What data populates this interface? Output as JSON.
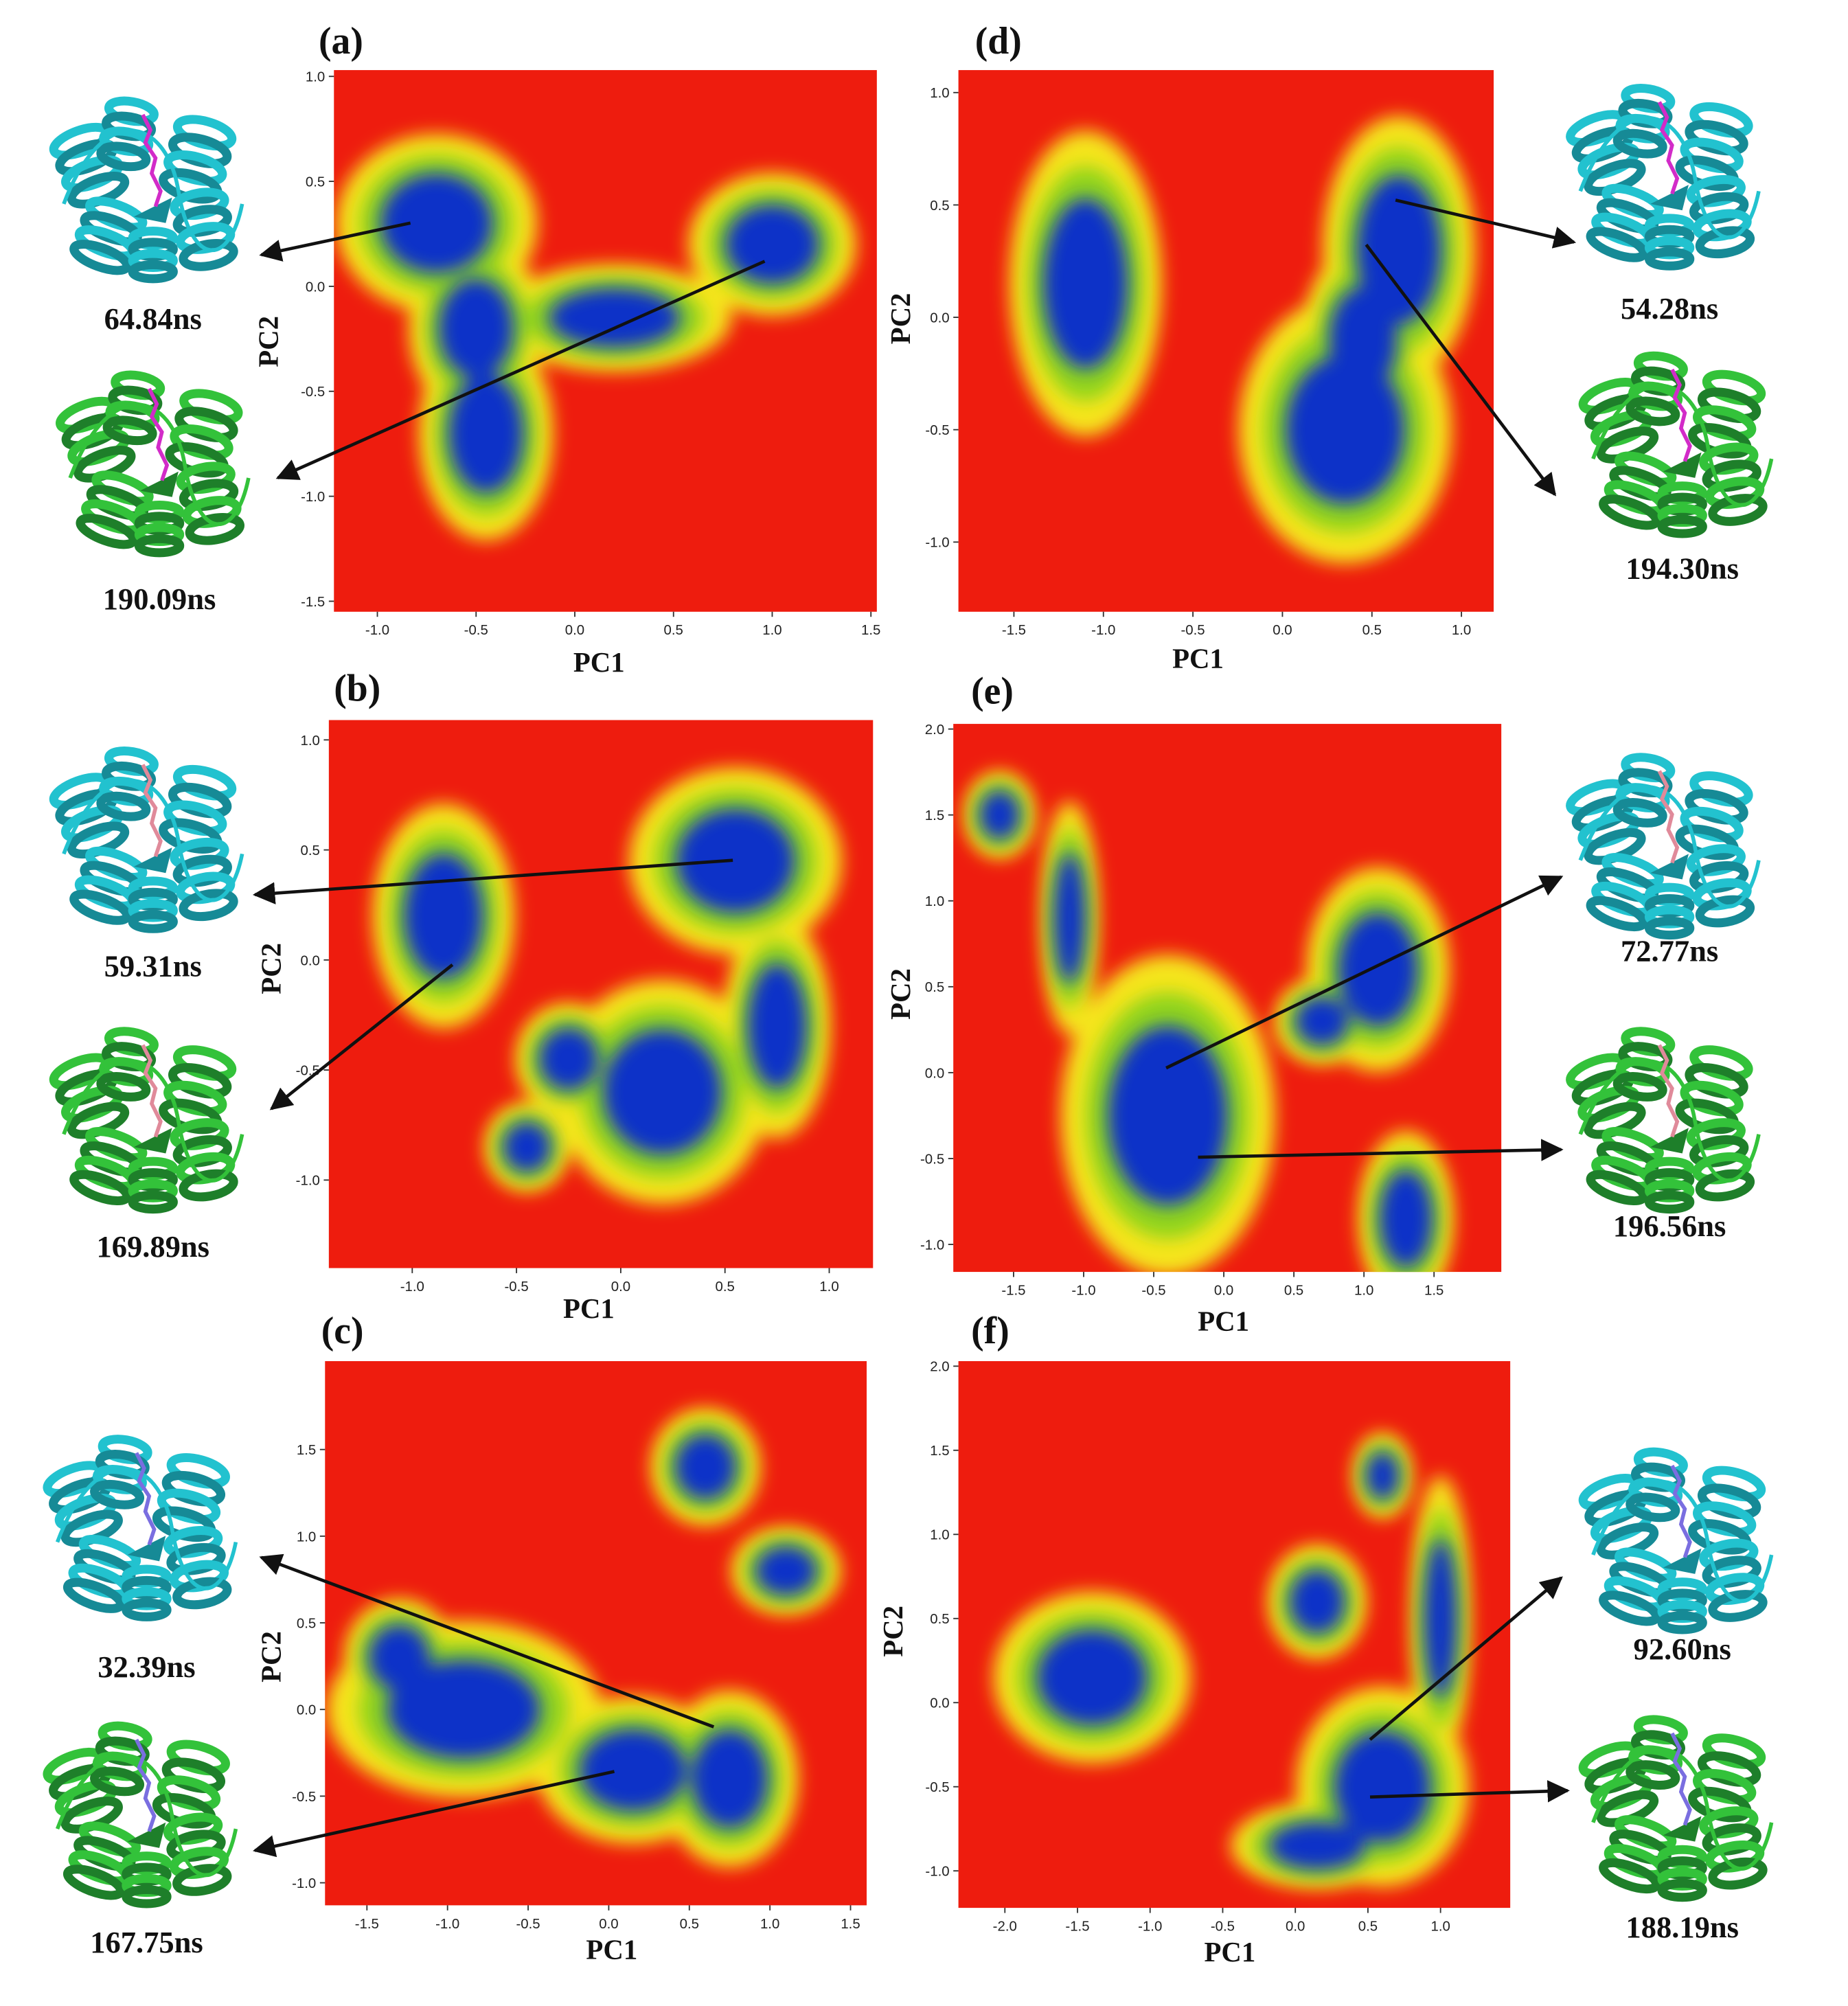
{
  "chart_data": [
    {
      "type": "density",
      "panel": "(a)",
      "xlabel": "PC1",
      "ylabel": "PC2",
      "xlim": [
        -1.22,
        1.53
      ],
      "ylim": [
        -1.55,
        1.03
      ],
      "xticks": [
        {
          "value": -1,
          "label": "-1.0"
        },
        -0.5,
        {
          "value": 0,
          "label": "0.0"
        },
        0.5,
        {
          "value": 1,
          "label": "1.0"
        },
        1.5
      ],
      "yticks": [
        -1.5,
        {
          "value": -1,
          "label": "-1.0"
        },
        -0.5,
        {
          "value": 0,
          "label": "0.0"
        },
        0.5,
        {
          "value": 1,
          "label": "1.0"
        }
      ],
      "basins": [
        {
          "x": -0.7,
          "y": 0.3,
          "rx": 0.3,
          "ry": 0.25
        },
        {
          "x": -0.5,
          "y": -0.2,
          "rx": 0.2,
          "ry": 0.25
        },
        {
          "x": -0.45,
          "y": -0.7,
          "rx": 0.2,
          "ry": 0.3
        },
        {
          "x": 0.2,
          "y": -0.15,
          "rx": 0.35,
          "ry": 0.15
        },
        {
          "x": 1.0,
          "y": 0.2,
          "rx": 0.25,
          "ry": 0.2
        }
      ],
      "snapshots": [
        "64.84ns",
        "190.09ns"
      ]
    },
    {
      "type": "density",
      "panel": "(b)",
      "xlabel": "PC1",
      "ylabel": "PC2",
      "xlim": [
        -1.4,
        1.21
      ],
      "ylim": [
        -1.4,
        1.09
      ],
      "xticks": [
        {
          "value": -1,
          "label": "-1.0"
        },
        -0.5,
        {
          "value": 0,
          "label": "0.0"
        },
        0.5,
        {
          "value": 1,
          "label": "1.0"
        }
      ],
      "yticks": [
        {
          "value": -1,
          "label": "-1.0"
        },
        -0.5,
        {
          "value": 0,
          "label": "0.0"
        },
        0.5,
        {
          "value": 1,
          "label": "1.0"
        }
      ],
      "basins": [
        {
          "x": -0.85,
          "y": 0.2,
          "rx": 0.2,
          "ry": 0.3
        },
        {
          "x": 0.55,
          "y": 0.45,
          "rx": 0.3,
          "ry": 0.25
        },
        {
          "x": -0.25,
          "y": -0.45,
          "rx": 0.15,
          "ry": 0.15
        },
        {
          "x": -0.45,
          "y": -0.85,
          "rx": 0.12,
          "ry": 0.12
        },
        {
          "x": 0.75,
          "y": -0.3,
          "rx": 0.15,
          "ry": 0.3
        },
        {
          "x": 0.2,
          "y": -0.6,
          "rx": 0.3,
          "ry": 0.3
        }
      ],
      "snapshots": [
        "59.31ns",
        "169.89ns"
      ]
    },
    {
      "type": "density",
      "panel": "(c)",
      "xlabel": "PC1",
      "ylabel": "PC2",
      "xlim": [
        -1.76,
        1.6
      ],
      "ylim": [
        -1.13,
        2.01
      ],
      "xticks": [
        -1.5,
        {
          "value": -1,
          "label": "-1.0"
        },
        -0.5,
        {
          "value": 0,
          "label": "0.0"
        },
        0.5,
        {
          "value": 1,
          "label": "1.0"
        },
        1.5
      ],
      "yticks": [
        {
          "value": -1,
          "label": "-1.0"
        },
        -0.5,
        {
          "value": 0,
          "label": "0.0"
        },
        0.5,
        {
          "value": 1,
          "label": "1.0"
        },
        1.5
      ],
      "basins": [
        {
          "x": -0.9,
          "y": 0.0,
          "rx": 0.5,
          "ry": 0.3
        },
        {
          "x": -1.3,
          "y": 0.3,
          "rx": 0.2,
          "ry": 0.2
        },
        {
          "x": 0.15,
          "y": -0.35,
          "rx": 0.35,
          "ry": 0.25
        },
        {
          "x": 0.75,
          "y": -0.4,
          "rx": 0.25,
          "ry": 0.3
        },
        {
          "x": 0.6,
          "y": 1.4,
          "rx": 0.2,
          "ry": 0.2
        },
        {
          "x": 1.1,
          "y": 0.8,
          "rx": 0.2,
          "ry": 0.15
        }
      ],
      "snapshots": [
        "32.39ns",
        "167.75ns"
      ]
    },
    {
      "type": "density",
      "panel": "(d)",
      "xlabel": "PC1",
      "ylabel": "PC2",
      "xlim": [
        -1.81,
        1.18
      ],
      "ylim": [
        -1.31,
        1.1
      ],
      "xticks": [
        -1.5,
        {
          "value": -1,
          "label": "-1.0"
        },
        -0.5,
        {
          "value": 0,
          "label": "0.0"
        },
        0.5,
        {
          "value": 1,
          "label": "1.0"
        }
      ],
      "yticks": [
        {
          "value": -1,
          "label": "-1.0"
        },
        -0.5,
        {
          "value": 0,
          "label": "0.0"
        },
        0.5,
        {
          "value": 1,
          "label": "1.0"
        }
      ],
      "basins": [
        {
          "x": -1.1,
          "y": 0.15,
          "rx": 0.25,
          "ry": 0.4
        },
        {
          "x": 0.65,
          "y": 0.3,
          "rx": 0.25,
          "ry": 0.35
        },
        {
          "x": 0.45,
          "y": -0.1,
          "rx": 0.2,
          "ry": 0.25
        },
        {
          "x": 0.35,
          "y": -0.5,
          "rx": 0.35,
          "ry": 0.35
        }
      ],
      "snapshots": [
        "54.28ns",
        "194.30ns"
      ]
    },
    {
      "type": "density",
      "panel": "(e)",
      "xlabel": "PC1",
      "ylabel": "PC2",
      "xlim": [
        -1.93,
        1.98
      ],
      "ylim": [
        -1.16,
        2.03
      ],
      "xticks": [
        -1.5,
        {
          "value": -1,
          "label": "-1.0"
        },
        -0.5,
        {
          "value": 0,
          "label": "0.0"
        },
        0.5,
        {
          "value": 1,
          "label": "1.0"
        },
        1.5
      ],
      "yticks": [
        {
          "value": -1,
          "label": "-1.0"
        },
        -0.5,
        {
          "value": 0,
          "label": "0.0"
        },
        0.5,
        {
          "value": 1,
          "label": "1.0"
        },
        1.5,
        {
          "value": 2,
          "label": "2.0"
        }
      ],
      "basins": [
        {
          "x": -0.4,
          "y": -0.25,
          "rx": 0.45,
          "ry": 0.55
        },
        {
          "x": -1.6,
          "y": 1.5,
          "rx": 0.15,
          "ry": 0.15
        },
        {
          "x": -1.1,
          "y": 0.9,
          "rx": 0.12,
          "ry": 0.4
        },
        {
          "x": 1.1,
          "y": 0.6,
          "rx": 0.3,
          "ry": 0.35
        },
        {
          "x": 0.7,
          "y": 0.3,
          "rx": 0.2,
          "ry": 0.15
        },
        {
          "x": 1.3,
          "y": -0.85,
          "rx": 0.2,
          "ry": 0.3
        }
      ],
      "snapshots": [
        "72.77ns",
        "196.56ns"
      ]
    },
    {
      "type": "density",
      "panel": "(f)",
      "xlabel": "PC1",
      "ylabel": "PC2",
      "xlim": [
        -2.32,
        1.48
      ],
      "ylim": [
        -1.22,
        2.03
      ],
      "xticks": [
        {
          "value": -2,
          "label": "-2.0"
        },
        -1.5,
        {
          "value": -1,
          "label": "-1.0"
        },
        -0.5,
        {
          "value": 0,
          "label": "0.0"
        },
        0.5,
        {
          "value": 1,
          "label": "1.0"
        }
      ],
      "yticks": [
        {
          "value": -1,
          "label": "-1.0"
        },
        -0.5,
        {
          "value": 0,
          "label": "0.0"
        },
        0.5,
        {
          "value": 1,
          "label": "1.0"
        },
        1.5,
        {
          "value": 2,
          "label": "2.0"
        }
      ],
      "basins": [
        {
          "x": -1.4,
          "y": 0.15,
          "rx": 0.4,
          "ry": 0.3
        },
        {
          "x": 0.6,
          "y": -0.5,
          "rx": 0.35,
          "ry": 0.35
        },
        {
          "x": 0.15,
          "y": -0.85,
          "rx": 0.35,
          "ry": 0.15
        },
        {
          "x": 0.15,
          "y": 0.6,
          "rx": 0.2,
          "ry": 0.2
        },
        {
          "x": 0.6,
          "y": 1.35,
          "rx": 0.12,
          "ry": 0.15
        },
        {
          "x": 1.0,
          "y": 0.5,
          "rx": 0.12,
          "ry": 0.5
        }
      ],
      "snapshots": [
        "92.60ns",
        "188.19ns"
      ]
    }
  ]
}
